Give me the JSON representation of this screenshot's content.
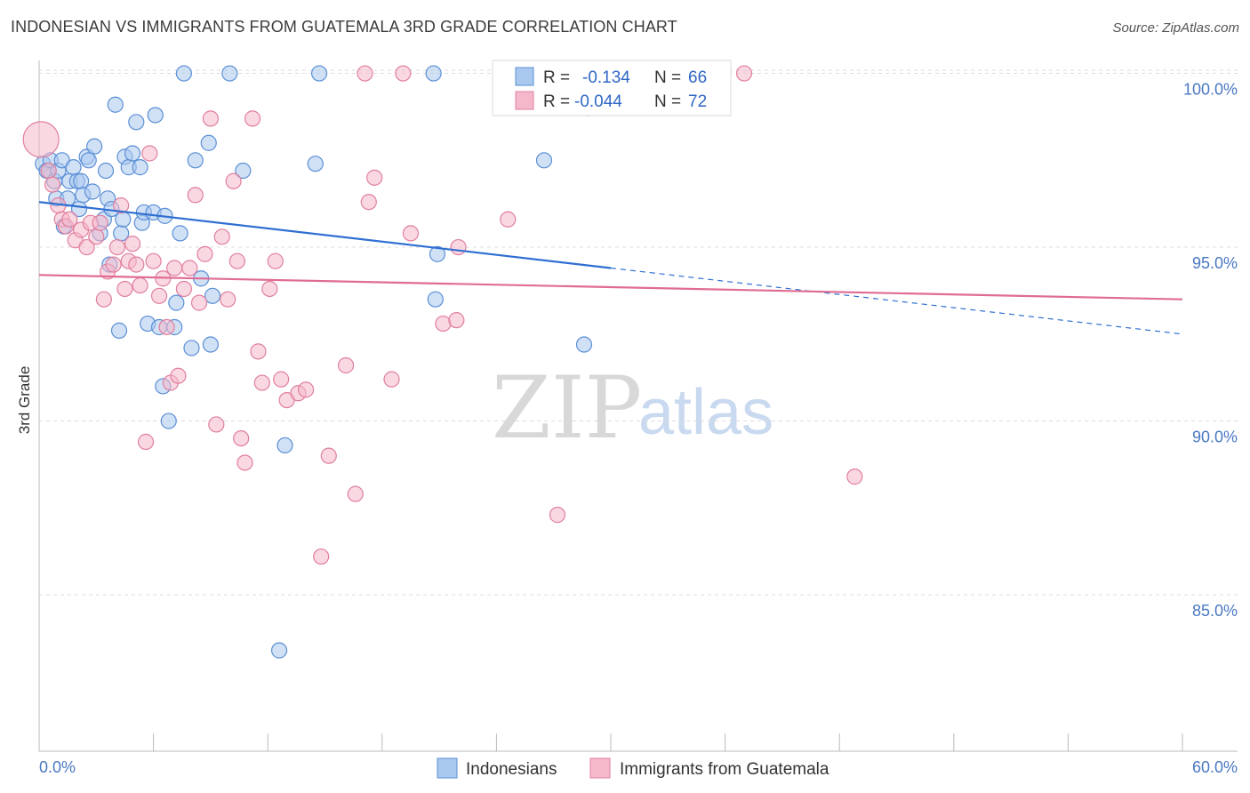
{
  "header": {
    "title": "INDONESIAN VS IMMIGRANTS FROM GUATEMALA 3RD GRADE CORRELATION CHART",
    "source": "Source: ZipAtlas.com"
  },
  "legend": {
    "r_label": "R =",
    "n_label": "N =",
    "indonesians": {
      "r": "-0.134",
      "n": "66"
    },
    "guatemala": {
      "r": "-0.044",
      "n": "72"
    }
  },
  "watermark": {
    "zip": "ZIP",
    "atlas": "atlas"
  },
  "colors": {
    "blue_fill": "#a9c8ee",
    "blue_stroke": "#5b8fd6",
    "blue_line": "#2f6fd1",
    "pink_fill": "#f5b8cb",
    "pink_stroke": "#e07f9f",
    "pink_line": "#e06c93",
    "tick_text": "#4a78c2",
    "grid": "#dddddd"
  },
  "chart_data": {
    "type": "scatter",
    "xlabel": "",
    "ylabel": "3rd Grade",
    "x_tick_labels": [
      "0.0%",
      "60.0%"
    ],
    "y_tick_labels": [
      "100.0%",
      "95.0%",
      "90.0%",
      "85.0%"
    ],
    "xlim": [
      0,
      60
    ],
    "ylim": [
      80.5,
      100.5
    ],
    "y_ticks": [
      100,
      95,
      90,
      85
    ],
    "grid": true,
    "series": [
      {
        "name": "Indonesians",
        "color": "#a9c8ee",
        "trend": {
          "x": [
            0,
            30
          ],
          "y": [
            96.3,
            94.4
          ],
          "dashed_to": [
            60,
            92.5
          ]
        },
        "points": [
          [
            0.2,
            97.4
          ],
          [
            0.4,
            97.2
          ],
          [
            0.5,
            97.2
          ],
          [
            0.6,
            97.5
          ],
          [
            0.8,
            96.9
          ],
          [
            0.9,
            96.4
          ],
          [
            1.0,
            97.2
          ],
          [
            1.2,
            97.5
          ],
          [
            1.3,
            95.6
          ],
          [
            1.5,
            96.4
          ],
          [
            1.6,
            96.9
          ],
          [
            1.8,
            97.3
          ],
          [
            2.0,
            96.9
          ],
          [
            2.1,
            96.1
          ],
          [
            2.2,
            96.9
          ],
          [
            2.3,
            96.5
          ],
          [
            2.5,
            97.6
          ],
          [
            2.6,
            97.5
          ],
          [
            2.8,
            96.6
          ],
          [
            2.9,
            97.9
          ],
          [
            3.2,
            95.4
          ],
          [
            3.4,
            95.8
          ],
          [
            3.5,
            97.2
          ],
          [
            3.6,
            96.4
          ],
          [
            3.7,
            94.5
          ],
          [
            3.8,
            96.1
          ],
          [
            4.0,
            99.1
          ],
          [
            4.2,
            92.6
          ],
          [
            4.3,
            95.4
          ],
          [
            4.4,
            95.8
          ],
          [
            4.5,
            97.6
          ],
          [
            4.7,
            97.3
          ],
          [
            4.9,
            97.7
          ],
          [
            5.1,
            98.6
          ],
          [
            5.3,
            97.3
          ],
          [
            5.4,
            95.7
          ],
          [
            5.5,
            96.0
          ],
          [
            5.7,
            92.8
          ],
          [
            6.0,
            96.0
          ],
          [
            6.1,
            98.8
          ],
          [
            6.3,
            92.7
          ],
          [
            6.5,
            91.0
          ],
          [
            6.6,
            95.9
          ],
          [
            6.8,
            90.0
          ],
          [
            7.1,
            92.7
          ],
          [
            7.2,
            93.4
          ],
          [
            7.4,
            95.4
          ],
          [
            7.6,
            100.0
          ],
          [
            8.0,
            92.1
          ],
          [
            8.2,
            97.5
          ],
          [
            8.5,
            94.1
          ],
          [
            8.9,
            98.0
          ],
          [
            9.0,
            92.2
          ],
          [
            9.1,
            93.6
          ],
          [
            10.0,
            100.0
          ],
          [
            10.7,
            97.2
          ],
          [
            12.6,
            83.4
          ],
          [
            12.9,
            89.3
          ],
          [
            14.5,
            97.4
          ],
          [
            14.7,
            100.0
          ],
          [
            20.7,
            100.0
          ],
          [
            20.8,
            93.5
          ],
          [
            20.9,
            94.8
          ],
          [
            26.5,
            97.5
          ],
          [
            28.6,
            92.2
          ],
          [
            28.8,
            99.0
          ]
        ]
      },
      {
        "name": "Immigrants from Guatemala",
        "color": "#f5b8cb",
        "trend": {
          "x": [
            0,
            60
          ],
          "y": [
            94.2,
            93.5
          ]
        },
        "points": [
          [
            0.1,
            98.1
          ],
          [
            0.5,
            97.2
          ],
          [
            0.7,
            96.8
          ],
          [
            1.0,
            96.2
          ],
          [
            1.2,
            95.8
          ],
          [
            1.4,
            95.6
          ],
          [
            1.6,
            95.8
          ],
          [
            1.9,
            95.2
          ],
          [
            2.2,
            95.5
          ],
          [
            2.5,
            95.0
          ],
          [
            2.7,
            95.7
          ],
          [
            3.0,
            95.3
          ],
          [
            3.2,
            95.7
          ],
          [
            3.4,
            93.5
          ],
          [
            3.6,
            94.3
          ],
          [
            3.9,
            94.5
          ],
          [
            4.1,
            95.0
          ],
          [
            4.3,
            96.2
          ],
          [
            4.5,
            93.8
          ],
          [
            4.7,
            94.6
          ],
          [
            4.9,
            95.1
          ],
          [
            5.1,
            94.5
          ],
          [
            5.3,
            93.9
          ],
          [
            5.6,
            89.4
          ],
          [
            5.8,
            97.7
          ],
          [
            6.0,
            94.6
          ],
          [
            6.3,
            93.6
          ],
          [
            6.5,
            94.1
          ],
          [
            6.7,
            92.7
          ],
          [
            6.9,
            91.1
          ],
          [
            7.1,
            94.4
          ],
          [
            7.3,
            91.3
          ],
          [
            7.6,
            93.8
          ],
          [
            7.9,
            94.4
          ],
          [
            8.2,
            96.5
          ],
          [
            8.4,
            93.4
          ],
          [
            8.7,
            94.8
          ],
          [
            9.0,
            98.7
          ],
          [
            9.3,
            89.9
          ],
          [
            9.6,
            95.3
          ],
          [
            9.9,
            93.5
          ],
          [
            10.2,
            96.9
          ],
          [
            10.4,
            94.6
          ],
          [
            10.6,
            89.5
          ],
          [
            10.8,
            88.8
          ],
          [
            11.2,
            98.7
          ],
          [
            11.5,
            92.0
          ],
          [
            11.7,
            91.1
          ],
          [
            12.1,
            93.8
          ],
          [
            12.4,
            94.6
          ],
          [
            12.7,
            91.2
          ],
          [
            13.0,
            90.6
          ],
          [
            13.6,
            90.8
          ],
          [
            14.0,
            90.9
          ],
          [
            14.8,
            86.1
          ],
          [
            15.2,
            89.0
          ],
          [
            16.1,
            91.6
          ],
          [
            16.6,
            87.9
          ],
          [
            17.1,
            100.0
          ],
          [
            17.3,
            96.3
          ],
          [
            17.6,
            97.0
          ],
          [
            18.5,
            91.2
          ],
          [
            19.1,
            100.0
          ],
          [
            19.5,
            95.4
          ],
          [
            21.2,
            92.8
          ],
          [
            21.9,
            92.9
          ],
          [
            22.0,
            95.0
          ],
          [
            24.6,
            95.8
          ],
          [
            27.2,
            87.3
          ],
          [
            29.3,
            100.0
          ],
          [
            37.0,
            100.0
          ],
          [
            42.8,
            88.4
          ]
        ]
      }
    ]
  },
  "bottom_legend": {
    "indonesians": "Indonesians",
    "guatemala": "Immigrants from Guatemala"
  }
}
